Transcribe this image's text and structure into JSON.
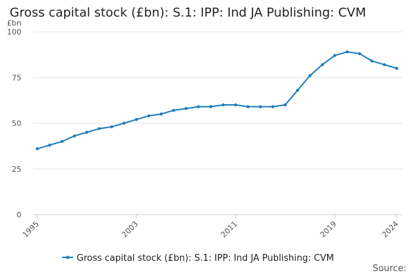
{
  "chart_data": {
    "type": "line",
    "title": "Gross capital stock (£bn): S.1: IPP: Ind JA Publishing: CVM",
    "ylabel": "£bn",
    "xlabel": "",
    "ylim": [
      0,
      100
    ],
    "yticks": [
      0,
      25,
      50,
      75,
      100
    ],
    "xlim": [
      1995,
      2024
    ],
    "xticks": [
      "1995",
      "2003",
      "2011",
      "2019",
      "2024"
    ],
    "grid": true,
    "legend_position": "bottom",
    "series": [
      {
        "name": "Gross capital stock (£bn): S.1: IPP: Ind JA Publishing: CVM",
        "color": "#1f7dbd",
        "x": [
          1995,
          1996,
          1997,
          1998,
          1999,
          2000,
          2001,
          2002,
          2003,
          2004,
          2005,
          2006,
          2007,
          2008,
          2009,
          2010,
          2011,
          2012,
          2013,
          2014,
          2015,
          2016,
          2017,
          2018,
          2019,
          2020,
          2021,
          2022,
          2023,
          2024
        ],
        "values": [
          36,
          38,
          40,
          43,
          45,
          47,
          48,
          50,
          52,
          54,
          55,
          57,
          58,
          59,
          59,
          60,
          60,
          59,
          59,
          59,
          60,
          68,
          76,
          82,
          87,
          89,
          88,
          84,
          82,
          80
        ]
      }
    ]
  },
  "source_label": "Source:"
}
